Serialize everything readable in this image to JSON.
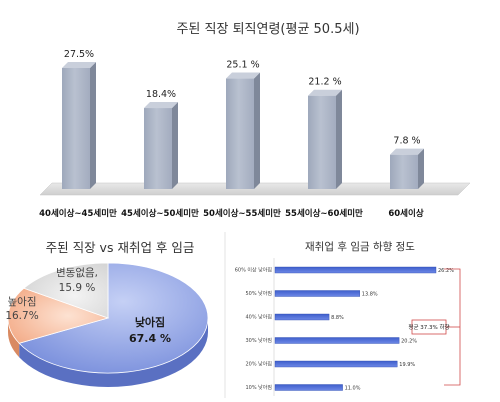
{
  "chart_data": [
    {
      "type": "bar",
      "title": "주된 직장 퇴직연령(평균 50.5세)",
      "categories": [
        "40세이상~45세미만",
        "45세이상~50세미만",
        "50세이상~55세미만",
        "55세이상~60세미만",
        "60세이상"
      ],
      "values": [
        27.5,
        18.4,
        25.1,
        21.2,
        7.8
      ],
      "value_labels": [
        "27.5%",
        "18.4%",
        "25.1 %",
        "21.2 %",
        "7.8 %"
      ],
      "ylim": [
        0,
        30
      ],
      "bar_color": "#a9b2c3",
      "grid": false,
      "legend": "none"
    },
    {
      "type": "pie",
      "title": "주된 직장 vs 재취업 후 임금",
      "slices": [
        {
          "label": "낮아짐",
          "value": 67.4,
          "text": "67.4 %",
          "color": "#8fa3e3"
        },
        {
          "label": "높아짐",
          "value": 16.7,
          "text": "16.7%",
          "color": "#f4b79a"
        },
        {
          "label": "변동없음,",
          "value": 15.9,
          "text": "15.9 %",
          "color": "#dcdcdc"
        }
      ]
    },
    {
      "type": "bar",
      "orientation": "horizontal",
      "title": "재취업 후 임금 하향 정도",
      "categories": [
        "60% 이상 낮아짐",
        "50% 낮아짐",
        "40% 낮아짐",
        "30% 낮아짐",
        "20% 낮아짐",
        "10% 낮아짐"
      ],
      "values": [
        26.2,
        13.8,
        8.8,
        20.2,
        19.9,
        11.0
      ],
      "value_labels": [
        "26.2%",
        "13.8%",
        "8.8%",
        "20.2%",
        "19.9%",
        "11.0%"
      ],
      "xlim": [
        0,
        30
      ],
      "bar_color": "#4f6fd6",
      "annotation": "평균 37.3% 하향",
      "annotation_color": "#cc3333"
    }
  ]
}
